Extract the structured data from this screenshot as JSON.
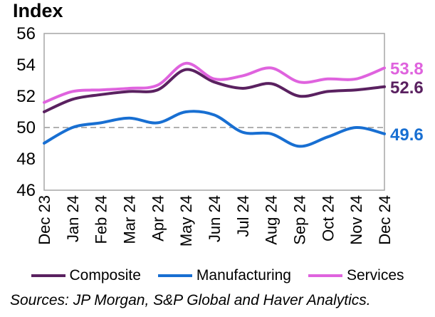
{
  "title": "Index",
  "source_note": "Sources: JP Morgan, S&P Global and Haver Analytics.",
  "colors": {
    "composite": "#5a2160",
    "manufacturing": "#186fd2",
    "services": "#df63de",
    "plot_border": "#a6a6a6",
    "reference_line": "#b0b0b0",
    "text": "#000000"
  },
  "chart_data": {
    "type": "line",
    "title": "Index",
    "x": [
      "Dec 23",
      "Jan 24",
      "Feb 24",
      "Mar 24",
      "Apr 24",
      "May 24",
      "Jun 24",
      "Jul 24",
      "Aug 24",
      "Sep 24",
      "Oct 24",
      "Nov 24",
      "Dec 24"
    ],
    "series": [
      {
        "name": "Composite",
        "color": "#5a2160",
        "end_label": "52.6",
        "values": [
          51.0,
          51.8,
          52.1,
          52.3,
          52.4,
          53.7,
          52.9,
          52.5,
          52.8,
          52.0,
          52.3,
          52.4,
          52.6
        ]
      },
      {
        "name": "Manufacturing",
        "color": "#186fd2",
        "end_label": "49.6",
        "values": [
          49.0,
          50.0,
          50.3,
          50.6,
          50.3,
          51.0,
          50.8,
          49.7,
          49.6,
          48.8,
          49.4,
          50.0,
          49.6
        ]
      },
      {
        "name": "Services",
        "color": "#df63de",
        "end_label": "53.8",
        "values": [
          51.6,
          52.3,
          52.4,
          52.5,
          52.7,
          54.1,
          53.1,
          53.3,
          53.8,
          52.9,
          53.1,
          53.1,
          53.8
        ]
      }
    ],
    "ylabel": "Index",
    "ylim": [
      46,
      56
    ],
    "yticks": [
      56,
      54,
      52,
      50,
      48,
      46
    ],
    "reference_line": 50,
    "smoothed": true,
    "grid": false,
    "legend_position": "bottom"
  }
}
